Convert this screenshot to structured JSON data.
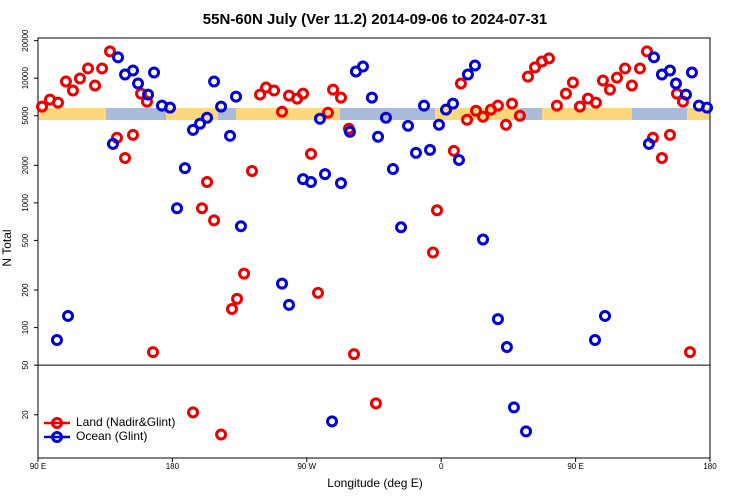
{
  "chart_data": {
    "type": "scatter",
    "title": "55N-60N July (Ver 11.2)   2014-09-06 to 2024-07-31",
    "xlabel": "Longitude (deg E)",
    "ylabel": "N Total",
    "log_y": true,
    "grid": false,
    "legend": "lower left",
    "split_line": 50,
    "xlim": [
      90,
      540
    ],
    "xticks": [
      {
        "value": 90,
        "label": "90 E"
      },
      {
        "value": 180,
        "label": "180"
      },
      {
        "value": 270,
        "label": "90 W"
      },
      {
        "value": 360,
        "label": "0"
      },
      {
        "value": 450,
        "label": "90 E"
      },
      {
        "value": 540,
        "label": "180"
      }
    ],
    "ylim": [
      9,
      21000
    ],
    "yticks": [
      20,
      50,
      100,
      200,
      500,
      1000,
      2000,
      5000,
      10000,
      20000
    ],
    "series": [
      {
        "name": "Land (Nadir&Glint)",
        "color": "#ee0000",
        "x": [
          92.7,
          98.0,
          103.4,
          108.7,
          113.4,
          118.1,
          123.5,
          128.2,
          132.9,
          138.2,
          142.9,
          148.3,
          153.6,
          159.0,
          163.0,
          167.0,
          193.8,
          199.8,
          203.2,
          207.9,
          212.6,
          219.9,
          223.3,
          228.0,
          233.3,
          238.7,
          242.7,
          248.1,
          253.4,
          258.1,
          263.5,
          267.5,
          272.8,
          277.5,
          284.2,
          287.6,
          292.9,
          298.2,
          301.6,
          316.3,
          354.5,
          357.2,
          368.5,
          373.2,
          377.3,
          383.3,
          388.0,
          393.3,
          398.0,
          403.4,
          407.4,
          412.7,
          418.1,
          422.8,
          427.5,
          432.2,
          437.5,
          443.5,
          448.2,
          452.9,
          458.3,
          463.6,
          468.3,
          473.0,
          477.7,
          483.1,
          487.7,
          493.1,
          497.8,
          501.8,
          507.8,
          513.2,
          517.9,
          521.9,
          526.6
        ],
        "values": [
          5910,
          6730,
          6370,
          9400,
          7960,
          9940,
          11970,
          8730,
          11970,
          16400,
          3330,
          2290,
          3510,
          7520,
          6490,
          63.6,
          20.9,
          906,
          1470,
          724,
          13.9,
          141,
          170,
          271,
          1800,
          7390,
          8410,
          7960,
          5380,
          7250,
          6860,
          7520,
          2470,
          190,
          5280,
          8100,
          6980,
          3930,
          61.3,
          24.7,
          400,
          873,
          2610,
          9060,
          4640,
          5480,
          4910,
          5590,
          6020,
          4230,
          6250,
          5000,
          10300,
          12200,
          13600,
          14400,
          6020,
          7520,
          9230,
          5910,
          6860,
          6370,
          9570,
          8100,
          10100,
          11970,
          8730,
          11970,
          16400,
          3330,
          2290,
          3510,
          7520,
          6490,
          63.6
        ]
      },
      {
        "name": "Ocean (Glint)",
        "color": "#0000dd",
        "x": [
          102.7,
          110.1,
          140.2,
          143.6,
          148.3,
          153.6,
          157.0,
          163.7,
          167.7,
          173.0,
          178.4,
          183.1,
          188.4,
          193.8,
          198.5,
          203.2,
          207.9,
          212.6,
          218.6,
          222.6,
          225.9,
          253.4,
          258.1,
          267.5,
          272.8,
          278.8,
          282.2,
          286.9,
          292.9,
          298.9,
          302.9,
          307.6,
          313.6,
          317.7,
          323.0,
          327.7,
          333.1,
          337.8,
          343.1,
          348.5,
          352.5,
          358.5,
          363.2,
          367.9,
          371.9,
          377.9,
          382.6,
          388.0,
          398.0,
          404.0,
          408.7,
          416.8,
          463.0,
          469.7,
          499.1,
          502.5,
          507.8,
          513.2,
          517.2,
          523.9,
          527.9,
          532.6,
          538.0
        ],
        "values": [
          79.6,
          124,
          2970,
          14700,
          10700,
          11530,
          9060,
          7390,
          11110,
          6020,
          5800,
          906,
          1900,
          3850,
          4310,
          4820,
          9400,
          5910,
          3450,
          7110,
          649,
          225,
          152,
          1550,
          1470,
          4730,
          1700,
          17.7,
          1440,
          3720,
          11320,
          12400,
          6980,
          3390,
          4820,
          1870,
          637,
          4150,
          2520,
          6020,
          2660,
          4230,
          5590,
          6250,
          2210,
          10700,
          12650,
          509,
          117,
          69.8,
          22.9,
          14.7,
          79.6,
          124,
          2970,
          14700,
          10700,
          11530,
          9060,
          7390,
          11110,
          6020,
          5800
        ]
      }
    ]
  }
}
